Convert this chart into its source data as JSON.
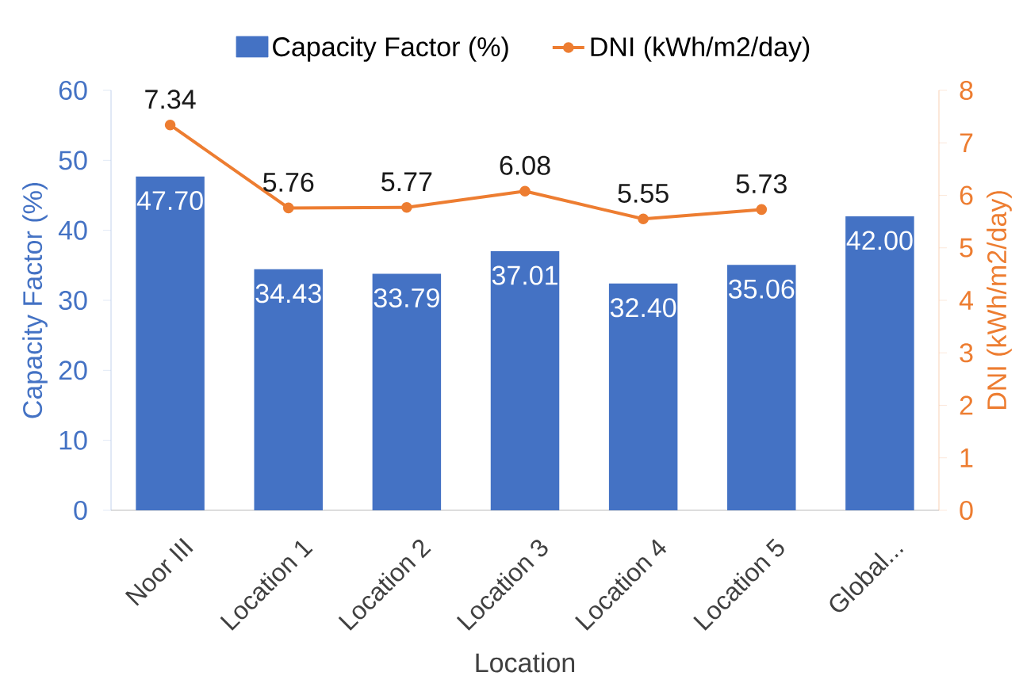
{
  "chart_data": {
    "type": "bar",
    "xlabel": "Location",
    "ylabel": "Capacity Factor (%)",
    "y2label": "DNI (kWh/m2/day)",
    "categories": [
      "Noor III",
      "Location 1",
      "Location 2",
      "Location 3",
      "Location 4",
      "Location 5",
      "Global..."
    ],
    "series": [
      {
        "name": "Capacity Factor (%)",
        "type": "bar",
        "color": "#4472c4",
        "values": [
          47.7,
          34.43,
          33.79,
          37.01,
          32.4,
          35.06,
          42.0
        ],
        "value_labels": [
          "47.70",
          "34.43",
          "33.79",
          "37.01",
          "32.40",
          "35.06",
          "42.00"
        ]
      },
      {
        "name": "DNI (kWh/m2/day)",
        "type": "line",
        "axis": "y2",
        "color": "#ed7d31",
        "marker": "circle",
        "values": [
          7.34,
          5.76,
          5.77,
          6.08,
          5.55,
          5.73,
          null
        ],
        "value_labels": [
          "7.34",
          "5.76",
          "5.77",
          "6.08",
          "5.55",
          "5.73",
          null
        ]
      }
    ],
    "ylim": [
      0,
      60
    ],
    "yticks": [
      0,
      10,
      20,
      30,
      40,
      50,
      60
    ],
    "y2lim": [
      0,
      8
    ],
    "y2ticks": [
      0,
      1,
      2,
      3,
      4,
      5,
      6,
      7,
      8
    ],
    "legend": "top"
  }
}
